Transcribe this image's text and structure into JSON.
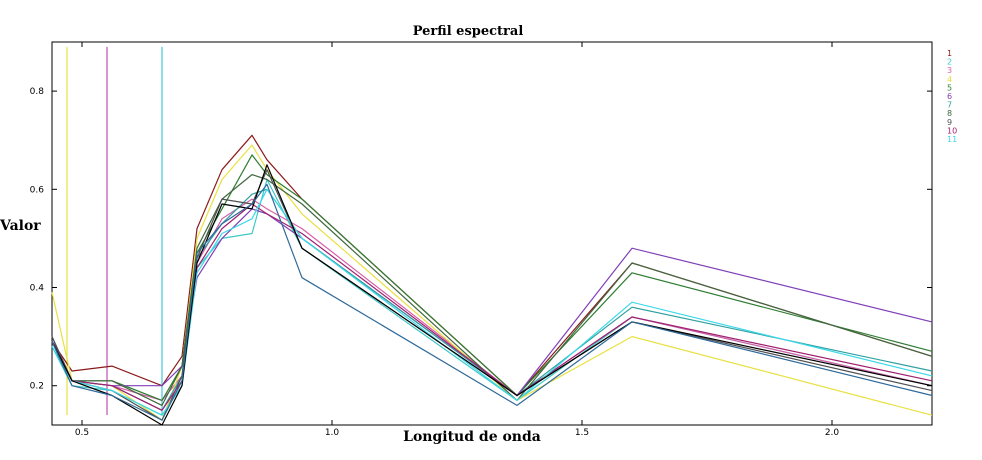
{
  "chart_data": {
    "type": "line",
    "title": "Perfil espectral",
    "xlabel": "Longitud de onda",
    "ylabel": "Valor",
    "xlim": [
      0.44,
      2.2
    ],
    "ylim": [
      0.12,
      0.9
    ],
    "xticks": [
      0.5,
      1.0,
      1.5,
      2.0
    ],
    "xtick_labels": [
      "0.5",
      "1.0",
      "1.5",
      "2.0"
    ],
    "yticks": [
      0.2,
      0.4,
      0.6,
      0.8
    ],
    "ytick_labels": [
      "0.2",
      "0.4",
      "0.6",
      "0.8"
    ],
    "grid": false,
    "legend_position": "top-right",
    "x": [
      0.44,
      0.48,
      0.56,
      0.66,
      0.7,
      0.73,
      0.78,
      0.84,
      0.87,
      0.94,
      1.37,
      1.6,
      2.2
    ],
    "series": [
      {
        "name": "1",
        "color": "#8b1a1a",
        "values": [
          0.29,
          0.23,
          0.24,
          0.2,
          0.26,
          0.52,
          0.64,
          0.71,
          0.66,
          0.58,
          0.18,
          0.45,
          0.26
        ]
      },
      {
        "name": "2",
        "color": "#40c8c8",
        "values": [
          0.28,
          0.2,
          0.19,
          0.14,
          0.2,
          0.44,
          0.5,
          0.51,
          0.62,
          0.48,
          0.17,
          0.34,
          0.2
        ]
      },
      {
        "name": "3",
        "color": "#d860a8",
        "values": [
          0.29,
          0.21,
          0.2,
          0.17,
          0.22,
          0.45,
          0.54,
          0.58,
          0.56,
          0.52,
          0.18,
          0.34,
          0.2
        ]
      },
      {
        "name": "4",
        "color": "#e8e040",
        "values": [
          0.39,
          0.21,
          0.2,
          0.13,
          0.24,
          0.5,
          0.62,
          0.69,
          0.64,
          0.55,
          0.17,
          0.3,
          0.14
        ]
      },
      {
        "name": "5",
        "color": "#2e7d32",
        "values": [
          0.29,
          0.21,
          0.21,
          0.17,
          0.24,
          0.47,
          0.56,
          0.67,
          0.63,
          0.58,
          0.18,
          0.43,
          0.27
        ]
      },
      {
        "name": "6",
        "color": "#8040b8",
        "values": [
          0.3,
          0.21,
          0.2,
          0.2,
          0.24,
          0.42,
          0.5,
          0.56,
          0.55,
          0.5,
          0.18,
          0.48,
          0.33
        ]
      },
      {
        "name": "7",
        "color": "#30a0a0",
        "values": [
          0.29,
          0.21,
          0.2,
          0.15,
          0.22,
          0.46,
          0.53,
          0.59,
          0.6,
          0.5,
          0.18,
          0.36,
          0.23
        ]
      },
      {
        "name": "8",
        "color": "#406840",
        "values": [
          0.29,
          0.21,
          0.21,
          0.16,
          0.24,
          0.48,
          0.58,
          0.63,
          0.62,
          0.57,
          0.17,
          0.45,
          0.26
        ]
      },
      {
        "name": "9",
        "color": "#505050",
        "values": [
          0.3,
          0.21,
          0.19,
          0.13,
          0.22,
          0.46,
          0.58,
          0.57,
          0.64,
          0.48,
          0.18,
          0.33,
          0.19
        ]
      },
      {
        "name": "10",
        "color": "#a02070",
        "values": [
          0.29,
          0.21,
          0.2,
          0.15,
          0.21,
          0.44,
          0.52,
          0.57,
          0.55,
          0.51,
          0.18,
          0.34,
          0.21
        ]
      },
      {
        "name": "11",
        "color": "#3cd8e8",
        "values": [
          0.28,
          0.21,
          0.19,
          0.14,
          0.2,
          0.43,
          0.51,
          0.54,
          0.6,
          0.5,
          0.17,
          0.37,
          0.22
        ]
      },
      {
        "name": "",
        "color": "#000000",
        "values": [
          0.29,
          0.21,
          0.18,
          0.12,
          0.2,
          0.45,
          0.57,
          0.56,
          0.65,
          0.48,
          0.18,
          0.33,
          0.2
        ]
      },
      {
        "name": "",
        "color": "#2f6a9a",
        "values": [
          0.29,
          0.2,
          0.18,
          0.13,
          0.21,
          0.47,
          0.53,
          0.57,
          0.61,
          0.42,
          0.16,
          0.33,
          0.18
        ]
      }
    ],
    "vertical_markers": [
      {
        "x": 0.47,
        "color": "#e8e040",
        "y_top": 0.89
      },
      {
        "x": 0.55,
        "color": "#c050b0",
        "y_top": 0.89
      },
      {
        "x": 0.66,
        "color": "#40c8e0",
        "y_top": 0.89
      }
    ]
  }
}
